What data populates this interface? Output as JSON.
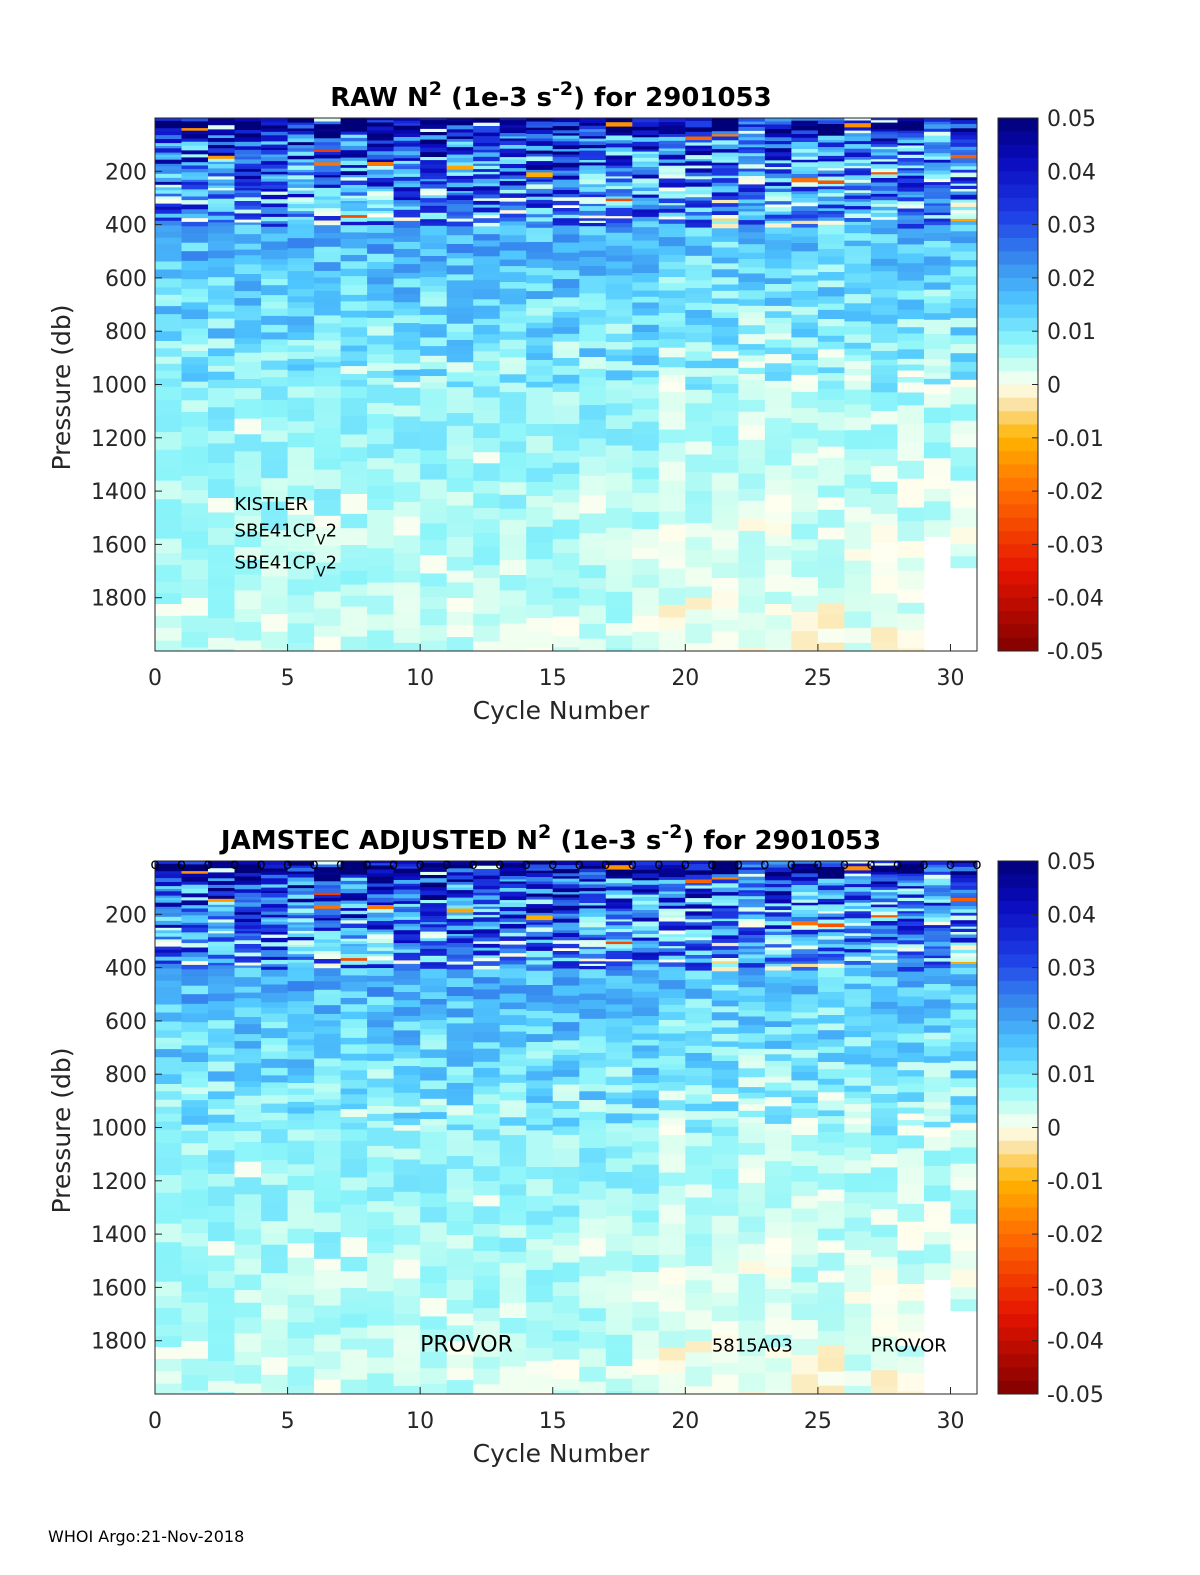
{
  "footer": "WHOI Argo:21-Nov-2018",
  "chart_data": [
    {
      "type": "heatmap",
      "title": {
        "prefix": "RAW N",
        "sup1": "2",
        "mid": " (1e-3 s",
        "sup2": "-2",
        "suffix": ") for 2901053"
      },
      "xlabel": "Cycle Number",
      "ylabel": "Pressure (db)",
      "xlim": [
        0,
        31
      ],
      "ylim": [
        0,
        2000
      ],
      "y_reversed": true,
      "xticks": [
        0,
        5,
        10,
        15,
        20,
        25,
        30
      ],
      "yticks": [
        200,
        400,
        600,
        800,
        1000,
        1200,
        1400,
        1600,
        1800
      ],
      "colorbar": {
        "min": -0.05,
        "max": 0.05,
        "ticks": [
          "0.05",
          "0.04",
          "0.03",
          "0.02",
          "0.01",
          "0",
          "-0.01",
          "-0.02",
          "-0.03",
          "-0.04",
          "-0.05"
        ],
        "colormap": "jet-like blue-cyan-white-yellow-red"
      },
      "annotations": [
        {
          "text": "KISTLER",
          "x": 3,
          "y": 1470
        },
        {
          "text": "SBE41CP",
          "sub": "V",
          "tail": "2",
          "x": 3,
          "y": 1570
        },
        {
          "text": "SBE41CP",
          "sub": "V",
          "tail": "2",
          "x": 3,
          "y": 1690
        }
      ],
      "markers": false
    },
    {
      "type": "heatmap",
      "title": {
        "prefix": "JAMSTEC  ADJUSTED N",
        "sup1": "2",
        "mid": " (1e-3 s",
        "sup2": "-2",
        "suffix": ") for 2901053"
      },
      "xlabel": "Cycle Number",
      "ylabel": "Pressure (db)",
      "xlim": [
        0,
        31
      ],
      "ylim": [
        0,
        2000
      ],
      "y_reversed": true,
      "xticks": [
        0,
        5,
        10,
        15,
        20,
        25,
        30
      ],
      "yticks": [
        200,
        400,
        600,
        800,
        1000,
        1200,
        1400,
        1600,
        1800
      ],
      "colorbar": {
        "min": -0.05,
        "max": 0.05,
        "ticks": [
          "0.05",
          "0.04",
          "0.03",
          "0.02",
          "0.01",
          "0",
          "-0.01",
          "-0.02",
          "-0.03",
          "-0.04",
          "-0.05"
        ],
        "colormap": "jet-like blue-cyan-white-yellow-red"
      },
      "annotations": [
        {
          "text": "PROVOR",
          "x": 10,
          "y": 1840,
          "big": true
        },
        {
          "text": "5815A03",
          "x": 21,
          "y": 1840
        },
        {
          "text": "PROVOR",
          "x": 27,
          "y": 1840
        }
      ],
      "markers": true,
      "marker_symbol": "o"
    }
  ]
}
